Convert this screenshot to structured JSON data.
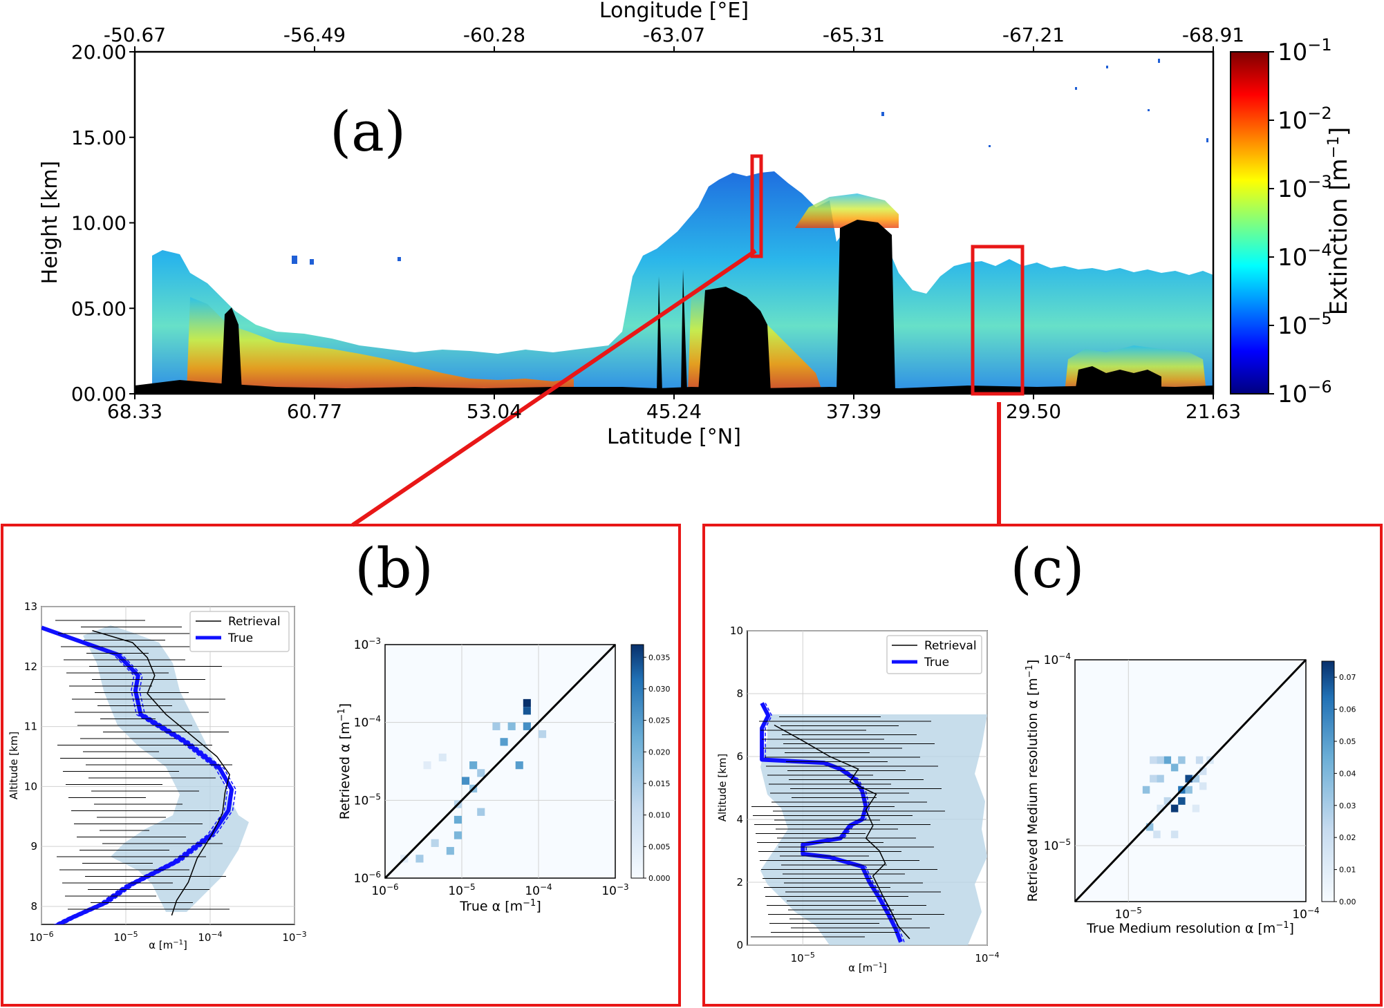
{
  "panel_a": {
    "label": "(a)",
    "xlabel_bottom": "Latitude",
    "xlabel_bottom_unit": "[°N]",
    "xlabel_top": "Longitude",
    "xlabel_top_unit": "[°E]",
    "ylabel": "Height [km]",
    "yticks": [
      "00.00",
      "05.00",
      "10.00",
      "15.00",
      "20.00"
    ],
    "yticks_values": [
      0,
      5,
      10,
      15,
      20
    ],
    "lat_ticks": [
      "68.33",
      "60.77",
      "53.04",
      "45.24",
      "37.39",
      "29.50",
      "21.63"
    ],
    "lon_ticks": [
      "-50.67",
      "-56.49",
      "-60.28",
      "-63.07",
      "-65.31",
      "-67.21",
      "-68.91"
    ],
    "colorbar_label": "Extinction [m",
    "colorbar_label_sup": "−1",
    "colorbar_label_end": "]",
    "colorbar_ticks": [
      {
        "base": "10",
        "exp": "−1"
      },
      {
        "base": "10",
        "exp": "−2"
      },
      {
        "base": "10",
        "exp": "−3"
      },
      {
        "base": "10",
        "exp": "−4"
      },
      {
        "base": "10",
        "exp": "−5"
      },
      {
        "base": "10",
        "exp": "−6"
      }
    ],
    "colors": {
      "cloud_low": "#1f5fd6",
      "cloud_mid": "#29b8e8",
      "cloud_hi": "#ffb000",
      "ground": "#000000",
      "highlight": "#e81717"
    }
  },
  "panel_b": {
    "label": "(b)",
    "profile": {
      "ylabel": "Altitude [km]",
      "xlabel": "α [m",
      "xlabel_sup": "−1",
      "xlabel_end": "]",
      "yticks": [
        "8",
        "9",
        "10",
        "11",
        "12",
        "13"
      ],
      "xticks": [
        {
          "base": "10",
          "exp": "−6"
        },
        {
          "base": "10",
          "exp": "−5"
        },
        {
          "base": "10",
          "exp": "−4"
        },
        {
          "base": "10",
          "exp": "−3"
        }
      ],
      "legend": [
        "Retrieval",
        "True"
      ]
    },
    "scatter": {
      "xlabel": "True α [m",
      "xlabel_sup": "−1",
      "xlabel_end": "]",
      "ylabel": "Retrieved α [m",
      "ylabel_sup": "−1",
      "ylabel_end": "]",
      "xticks": [
        {
          "base": "10",
          "exp": "−6"
        },
        {
          "base": "10",
          "exp": "−5"
        },
        {
          "base": "10",
          "exp": "−4"
        },
        {
          "base": "10",
          "exp": "−3"
        }
      ],
      "yticks": [
        {
          "base": "10",
          "exp": "−6"
        },
        {
          "base": "10",
          "exp": "−5"
        },
        {
          "base": "10",
          "exp": "−4"
        },
        {
          "base": "10",
          "exp": "−3"
        }
      ],
      "colorbar_ticks": [
        "0.000",
        "0.005",
        "0.010",
        "0.015",
        "0.020",
        "0.025",
        "0.030",
        "0.035"
      ]
    }
  },
  "panel_c": {
    "label": "(c)",
    "profile": {
      "ylabel": "Altitude [km]",
      "xlabel": "α [m",
      "xlabel_sup": "−1",
      "xlabel_end": "]",
      "yticks": [
        "0",
        "2",
        "4",
        "6",
        "8",
        "10"
      ],
      "xticks": [
        {
          "base": "10",
          "exp": "−5"
        },
        {
          "base": "10",
          "exp": "−4"
        }
      ],
      "legend": [
        "Retrieval",
        "True"
      ]
    },
    "scatter": {
      "xlabel": "True Medium resolution α [m",
      "xlabel_sup": "−1",
      "xlabel_end": "]",
      "ylabel": "Retrieved Medium resolution α [m",
      "ylabel_sup": "−1",
      "ylabel_end": "]",
      "xticks": [
        {
          "base": "10",
          "exp": "−5"
        },
        {
          "base": "10",
          "exp": "−4"
        }
      ],
      "yticks": [
        {
          "base": "10",
          "exp": "−5"
        },
        {
          "base": "10",
          "exp": "−4"
        }
      ],
      "colorbar_ticks": [
        "0.00",
        "0.01",
        "0.02",
        "0.03",
        "0.04",
        "0.05",
        "0.06",
        "0.07"
      ]
    }
  },
  "chart_data": [
    {
      "type": "heatmap",
      "title": "",
      "xlabel": "Latitude [°N]",
      "ylabel": "Height [km]",
      "ylim": [
        0,
        20
      ],
      "xlim": [
        68.33,
        21.63
      ],
      "color_scale": "log",
      "color_range": [
        1e-06,
        0.1
      ],
      "cloud_tops_km": [
        {
          "lat": 66.5,
          "top": 8.3
        },
        {
          "lat": 63.0,
          "top": 5.5
        },
        {
          "lat": 60.0,
          "top": 3.6
        },
        {
          "lat": 55.0,
          "top": 2.6
        },
        {
          "lat": 50.0,
          "top": 2.4
        },
        {
          "lat": 46.5,
          "top": 8.5
        },
        {
          "lat": 43.5,
          "top": 12.5
        },
        {
          "lat": 40.5,
          "top": 12.8
        },
        {
          "lat": 38.0,
          "top": 11.8
        },
        {
          "lat": 35.5,
          "top": 10.0
        },
        {
          "lat": 32.0,
          "top": 6.5
        },
        {
          "lat": 27.0,
          "top": 6.8
        },
        {
          "lat": 22.0,
          "top": 5.8
        }
      ]
    },
    {
      "type": "line",
      "xlabel": "α [m-1]",
      "ylabel": "Altitude [km]",
      "xscale": "log",
      "xlim": [
        1e-06,
        0.001
      ],
      "ylim": [
        7.7,
        13
      ],
      "series": [
        {
          "name": "True",
          "x": [
            1e-06,
            2.2e-06,
            5.5e-06,
            1.1e-05,
            4e-05,
            0.000105,
            0.000165,
            0.00018,
            0.00013,
            5e-05,
            1.5e-05,
            1.3e-05,
            1.4e-05,
            8e-06,
            2.5e-06,
            1e-06
          ],
          "y": [
            7.55,
            7.8,
            8.05,
            8.35,
            8.75,
            9.2,
            9.6,
            9.95,
            10.3,
            10.75,
            11.2,
            11.6,
            11.85,
            12.2,
            12.45,
            12.65
          ]
        },
        {
          "name": "Retrieval",
          "x": [
            3.5e-05,
            4e-05,
            5.5e-05,
            7e-05,
            0.000105,
            0.00014,
            0.00015,
            0.00017,
            0.00012,
            6e-05,
            3e-05,
            1.8e-05,
            2.2e-05,
            1.8e-05,
            1.2e-05,
            4e-06
          ],
          "y": [
            7.85,
            8.1,
            8.4,
            8.8,
            9.2,
            9.55,
            9.9,
            10.2,
            10.5,
            10.85,
            11.2,
            11.55,
            11.85,
            12.15,
            12.4,
            12.6
          ]
        }
      ]
    },
    {
      "type": "heatmap",
      "xlabel": "True α [m-1]",
      "ylabel": "Retrieved α [m-1]",
      "xscale": "log",
      "yscale": "log",
      "xlim": [
        1e-06,
        0.001
      ],
      "ylim": [
        1e-06,
        0.001
      ],
      "color_range": [
        0,
        0.035
      ],
      "cells": [
        {
          "x": -4.2,
          "y": -3.8,
          "v": 0.035
        },
        {
          "x": -4.2,
          "y": -3.9,
          "v": 0.03
        },
        {
          "x": -4.2,
          "y": -4.1,
          "v": 0.022
        },
        {
          "x": -4.4,
          "y": -4.1,
          "v": 0.015
        },
        {
          "x": -4.6,
          "y": -4.1,
          "v": 0.012
        },
        {
          "x": -4.5,
          "y": -4.3,
          "v": 0.02
        },
        {
          "x": -4.9,
          "y": -4.6,
          "v": 0.018
        },
        {
          "x": -4.8,
          "y": -4.7,
          "v": 0.012
        },
        {
          "x": -4.3,
          "y": -4.6,
          "v": 0.02
        },
        {
          "x": -5.0,
          "y": -4.8,
          "v": 0.022
        },
        {
          "x": -4.9,
          "y": -4.9,
          "v": 0.014
        },
        {
          "x": -4.8,
          "y": -5.2,
          "v": 0.012
        },
        {
          "x": -5.1,
          "y": -5.1,
          "v": 0.01
        },
        {
          "x": -5.1,
          "y": -5.3,
          "v": 0.018
        },
        {
          "x": -5.1,
          "y": -5.5,
          "v": 0.016
        },
        {
          "x": -5.2,
          "y": -5.7,
          "v": 0.015
        },
        {
          "x": -5.4,
          "y": -5.6,
          "v": 0.01
        },
        {
          "x": -5.6,
          "y": -5.8,
          "v": 0.012
        },
        {
          "x": -5.8,
          "y": -5.8,
          "v": 0.004
        },
        {
          "x": -5.5,
          "y": -4.6,
          "v": 0.004
        },
        {
          "x": -5.3,
          "y": -4.5,
          "v": 0.005
        },
        {
          "x": -4.0,
          "y": -4.2,
          "v": 0.01
        }
      ]
    },
    {
      "type": "line",
      "xlabel": "α [m-1]",
      "ylabel": "Altitude [km]",
      "xscale": "log",
      "xlim": [
        5e-06,
        0.0001
      ],
      "ylim": [
        0,
        10
      ],
      "series": [
        {
          "name": "True",
          "x": [
            3.4e-05,
            3.2e-05,
            2.9e-05,
            2.6e-05,
            2.3e-05,
            2.1e-05,
            1.6e-05,
            1.4e-05,
            1e-05,
            1e-05,
            1.6e-05,
            1.8e-05,
            2.1e-05,
            2.2e-05,
            2.1e-05,
            1.9e-05,
            1.6e-05,
            1.3e-05,
            6e-06,
            6e-06,
            6.5e-06,
            6e-06
          ],
          "y": [
            0.1,
            0.5,
            1.0,
            1.5,
            2.0,
            2.5,
            2.7,
            2.8,
            2.9,
            3.2,
            3.4,
            3.8,
            4.0,
            4.4,
            4.9,
            5.3,
            5.6,
            5.8,
            5.9,
            6.9,
            7.3,
            7.7
          ]
        },
        {
          "name": "Retrieval",
          "x": [
            3.8e-05,
            3.3e-05,
            3e-05,
            2.7e-05,
            2.4e-05,
            2.8e-05,
            2.6e-05,
            2.2e-05,
            2.4e-05,
            2.2e-05,
            2.5e-05,
            1.8e-05,
            2e-05,
            1.4e-05,
            1e-05,
            7e-06
          ],
          "y": [
            0.2,
            0.6,
            1.1,
            1.6,
            2.2,
            2.6,
            3.0,
            3.4,
            3.8,
            4.3,
            4.8,
            5.2,
            5.6,
            6.0,
            6.5,
            7.0
          ]
        }
      ]
    },
    {
      "type": "heatmap",
      "xlabel": "True Medium resolution α [m-1]",
      "ylabel": "Retrieved Medium resolution α [m-1]",
      "xscale": "log",
      "yscale": "log",
      "xlim": [
        5e-06,
        0.0001
      ],
      "ylim": [
        5e-06,
        0.0001
      ],
      "color_range": [
        0,
        0.075
      ],
      "cells": [
        {
          "x": -4.68,
          "y": -4.66,
          "v": 0.068
        },
        {
          "x": -4.72,
          "y": -4.72,
          "v": 0.055
        },
        {
          "x": -4.72,
          "y": -4.78,
          "v": 0.065
        },
        {
          "x": -4.76,
          "y": -4.82,
          "v": 0.072
        },
        {
          "x": -4.68,
          "y": -4.72,
          "v": 0.03
        },
        {
          "x": -4.64,
          "y": -4.66,
          "v": 0.025
        },
        {
          "x": -4.76,
          "y": -4.6,
          "v": 0.035
        },
        {
          "x": -4.8,
          "y": -4.56,
          "v": 0.04
        },
        {
          "x": -4.72,
          "y": -4.56,
          "v": 0.028
        },
        {
          "x": -4.84,
          "y": -4.56,
          "v": 0.022
        },
        {
          "x": -4.88,
          "y": -4.56,
          "v": 0.018
        },
        {
          "x": -4.62,
          "y": -4.56,
          "v": 0.018
        },
        {
          "x": -4.56,
          "y": -4.56,
          "v": 0.012
        },
        {
          "x": -4.6,
          "y": -4.62,
          "v": 0.015
        },
        {
          "x": -4.84,
          "y": -4.66,
          "v": 0.025
        },
        {
          "x": -4.88,
          "y": -4.66,
          "v": 0.02
        },
        {
          "x": -4.92,
          "y": -4.72,
          "v": 0.03
        },
        {
          "x": -4.8,
          "y": -4.78,
          "v": 0.02
        },
        {
          "x": -4.84,
          "y": -4.82,
          "v": 0.012
        },
        {
          "x": -4.9,
          "y": -4.92,
          "v": 0.03
        },
        {
          "x": -4.86,
          "y": -4.96,
          "v": 0.014
        },
        {
          "x": -4.76,
          "y": -4.96,
          "v": 0.014
        },
        {
          "x": -4.64,
          "y": -4.82,
          "v": 0.01
        },
        {
          "x": -4.6,
          "y": -4.7,
          "v": 0.012
        }
      ]
    }
  ]
}
